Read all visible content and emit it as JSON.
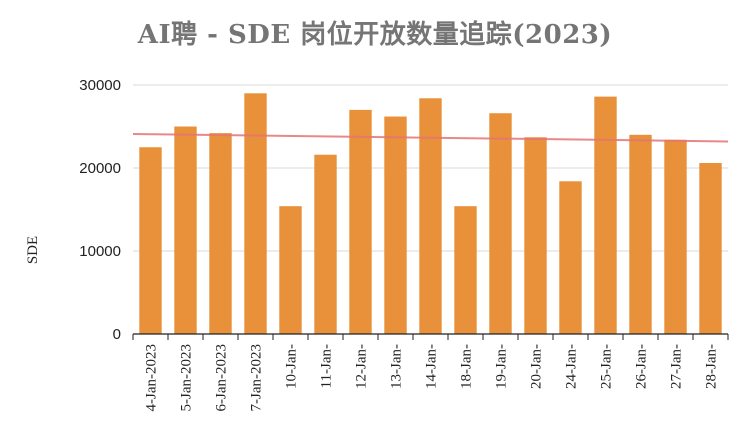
{
  "chart_data": {
    "type": "bar",
    "title": "AI聘 - SDE 岗位开放数量追踪(2023)",
    "xlabel": "",
    "ylabel": "SDE",
    "ylim": [
      0,
      30000
    ],
    "yticks": [
      0,
      10000,
      20000,
      30000
    ],
    "categories": [
      "4-Jan-2023",
      "5-Jan-2023",
      "6-Jan-2023",
      "7-Jan-2023",
      "10-Jan-",
      "11-Jan-",
      "12-Jan-",
      "13-Jan-",
      "14-Jan-",
      "18-Jan-",
      "19-Jan-",
      "20-Jan-",
      "24-Jan-",
      "25-Jan-",
      "26-Jan-",
      "27-Jan-",
      "28-Jan-"
    ],
    "series": [
      {
        "values": [
          22500,
          25000,
          24200,
          29000,
          15400,
          21600,
          27000,
          26200,
          28400,
          15400,
          26600,
          23700,
          18400,
          28600,
          24000,
          23400,
          20600
        ]
      }
    ],
    "trendline": {
      "start": 24100,
      "end": 23200
    },
    "grid": true,
    "legend": "none",
    "colors": {
      "bar": "#E8913A",
      "trendline": "#E57373",
      "grid": "#D9D9D9",
      "axis": "#222222"
    }
  }
}
